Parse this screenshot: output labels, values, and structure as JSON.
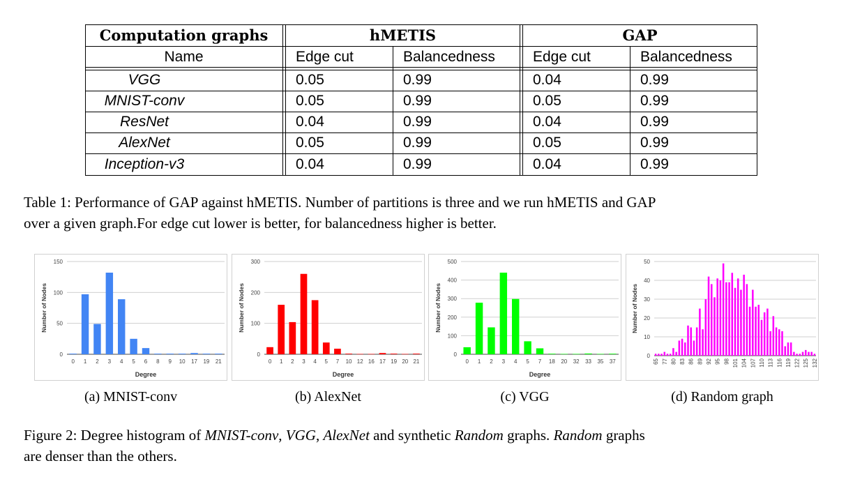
{
  "table": {
    "group_headers": [
      "Computation graphs",
      "hMETIS",
      "GAP"
    ],
    "sub_headers": [
      "Name",
      "Edge cut",
      "Balancedness",
      "Edge cut",
      "Balancedness"
    ],
    "rows": [
      {
        "name": "VGG",
        "h_edge": "0.05",
        "h_bal": "0.99",
        "g_edge": "0.04",
        "g_bal": "0.99"
      },
      {
        "name": "MNIST-conv",
        "h_edge": "0.05",
        "h_bal": "0.99",
        "g_edge": "0.05",
        "g_bal": "0.99"
      },
      {
        "name": "ResNet",
        "h_edge": "0.04",
        "h_bal": "0.99",
        "g_edge": "0.04",
        "g_bal": "0.99"
      },
      {
        "name": "AlexNet",
        "h_edge": "0.05",
        "h_bal": "0.99",
        "g_edge": "0.05",
        "g_bal": "0.99"
      },
      {
        "name": "Inception-v3",
        "h_edge": "0.04",
        "h_bal": "0.99",
        "g_edge": "0.04",
        "g_bal": "0.99"
      }
    ]
  },
  "table_caption": {
    "line1": "Table 1: Performance of GAP against hMETIS. Number of partitions is three and we run hMETIS and GAP",
    "line2": "over a given graph.For edge cut lower is better, for balancedness higher is better."
  },
  "figure_caption": {
    "prefix": "Figure 2: Degree histogram of ",
    "m1": "MNIST-conv",
    "s1": ", ",
    "m2": "VGG",
    "s2": ", ",
    "m3": "AlexNet",
    "s3": " and synthetic ",
    "m4": "Random",
    "s4": " graphs. ",
    "m5": "Random",
    "s5": " graphs",
    "line2": "are denser than the others."
  },
  "subcaptions": [
    "(a) MNIST-conv",
    "(b) AlexNet",
    "(c) VGG",
    "(d) Random graph"
  ],
  "chart_data": [
    {
      "type": "bar",
      "color": "#4285f4",
      "xlabel": "Degree",
      "ylabel": "Number of Nodes",
      "ylim": [
        0,
        150
      ],
      "yticks": [
        0,
        50,
        100,
        150
      ],
      "grid": true,
      "categories": [
        "0",
        "1",
        "2",
        "3",
        "4",
        "5",
        "6",
        "8",
        "9",
        "10",
        "17",
        "19",
        "21"
      ],
      "values": [
        1,
        97,
        49,
        132,
        89,
        25,
        10,
        1,
        1,
        1,
        2,
        1,
        1
      ]
    },
    {
      "type": "bar",
      "color": "#ff0000",
      "xlabel": "Degree",
      "ylabel": "Number of Nodes",
      "ylim": [
        0,
        300
      ],
      "yticks": [
        0,
        100,
        200,
        300
      ],
      "grid": true,
      "categories": [
        "0",
        "1",
        "2",
        "3",
        "4",
        "5",
        "7",
        "10",
        "12",
        "16",
        "17",
        "19",
        "20",
        "21"
      ],
      "values": [
        23,
        160,
        104,
        260,
        175,
        38,
        18,
        2,
        1,
        1,
        4,
        2,
        1,
        2
      ]
    },
    {
      "type": "bar",
      "color": "#00ff00",
      "xlabel": "Degree",
      "ylabel": "Number of Nodes",
      "ylim": [
        0,
        500
      ],
      "yticks": [
        0,
        100,
        200,
        300,
        400,
        500
      ],
      "grid": true,
      "categories": [
        "0",
        "1",
        "2",
        "3",
        "4",
        "5",
        "7",
        "18",
        "20",
        "32",
        "33",
        "35",
        "37"
      ],
      "values": [
        38,
        278,
        145,
        440,
        298,
        70,
        32,
        3,
        2,
        2,
        4,
        2,
        3
      ]
    },
    {
      "type": "bar",
      "color": "#ff00ff",
      "xlabel": "",
      "ylabel": "Number of Nodes",
      "ylim": [
        0,
        50
      ],
      "yticks": [
        0,
        10,
        20,
        30,
        40,
        50
      ],
      "grid": true,
      "tick_labels": [
        "65",
        "77",
        "80",
        "83",
        "86",
        "89",
        "92",
        "95",
        "98",
        "101",
        "104",
        "107",
        "110",
        "113",
        "116",
        "119",
        "122",
        "125",
        "132"
      ],
      "values": [
        1,
        1,
        1,
        2,
        1,
        1,
        4,
        2,
        8,
        9,
        7,
        16,
        15,
        8,
        15,
        25,
        14,
        30,
        42,
        38,
        31,
        41,
        40,
        49,
        39,
        39,
        44,
        36,
        41,
        35,
        43,
        38,
        26,
        35,
        26,
        27,
        19,
        23,
        25,
        13,
        21,
        15,
        14,
        13,
        5,
        7,
        7,
        2,
        1,
        1,
        2,
        3,
        2,
        2,
        1
      ]
    }
  ]
}
